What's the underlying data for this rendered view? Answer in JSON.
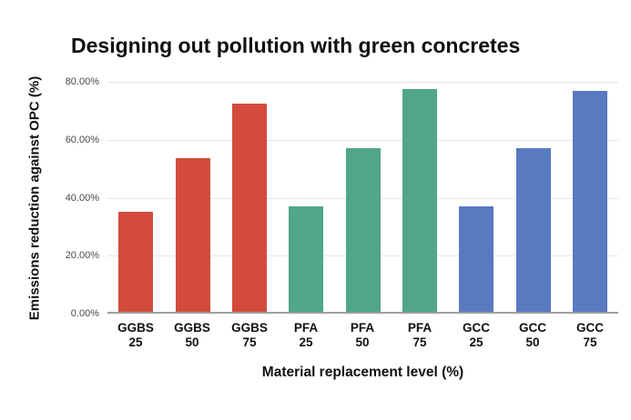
{
  "chart_data": {
    "type": "bar",
    "title": "Designing out pollution with green concretes",
    "xlabel": "Material replacement level (%)",
    "ylabel": "Emissions reduction against OPC (%)",
    "categories": [
      "GGBS 25",
      "GGBS 50",
      "GGBS 75",
      "PFA 25",
      "PFA 50",
      "PFA 75",
      "GCC 25",
      "GCC 50",
      "GCC 75"
    ],
    "values": [
      35,
      53.5,
      72.5,
      37,
      57,
      77.5,
      37,
      57,
      77
    ],
    "bar_colors": [
      "#d24b3c",
      "#d24b3c",
      "#d24b3c",
      "#51a58a",
      "#51a58a",
      "#51a58a",
      "#5979c1",
      "#5979c1",
      "#5979c1"
    ],
    "series_colors": {
      "GGBS": "#d24b3c",
      "PFA": "#51a58a",
      "GCC": "#5979c1"
    },
    "ylim": [
      0,
      80
    ],
    "ytick_values": [
      0,
      20,
      40,
      60,
      80
    ],
    "ytick_labels": [
      "0.00%",
      "20.00%",
      "40.00%",
      "60.00%",
      "80.00%"
    ],
    "grid": true,
    "legend": "none",
    "gridline_color": "#e6e6e6",
    "axis_line_color": "#9e9e9e",
    "tick_label_color": "#4a4a4a",
    "text_color": "#111111",
    "background_color": "#ffffff"
  }
}
